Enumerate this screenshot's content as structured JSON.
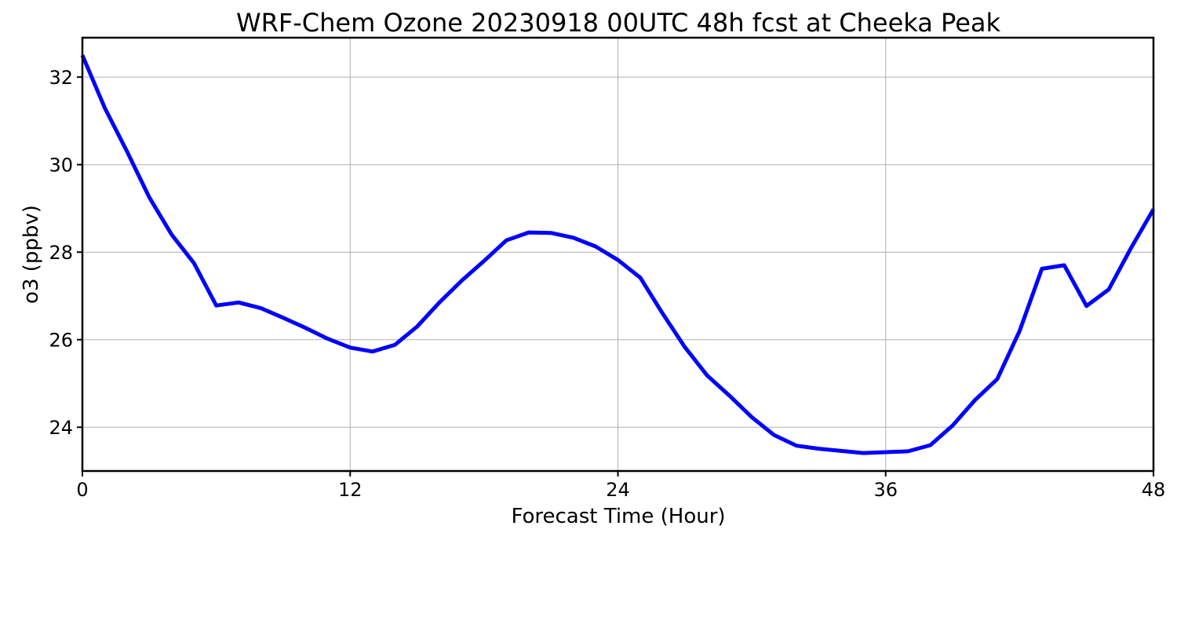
{
  "chart_data": {
    "type": "line",
    "title": "WRF-Chem Ozone  20230918 00UTC 48h fcst at Cheeka Peak",
    "xlabel": "Forecast Time (Hour)",
    "ylabel": "o3  (ppbv)",
    "xlim": [
      0,
      48
    ],
    "ylim": [
      23,
      32.9
    ],
    "xticks": [
      0,
      12,
      24,
      36,
      48
    ],
    "yticks": [
      24,
      26,
      28,
      30,
      32
    ],
    "grid": true,
    "line_color": "#0000ff",
    "series": [
      {
        "x": [
          0,
          1,
          2,
          3,
          4,
          5,
          6,
          7,
          8,
          9,
          10,
          11,
          12,
          13,
          14,
          15,
          16,
          17,
          18,
          19,
          20,
          21,
          22,
          23,
          24,
          25,
          26,
          27,
          28,
          29,
          30,
          31,
          32,
          33,
          34,
          35,
          36,
          37,
          38,
          39,
          40,
          41,
          42,
          43,
          44,
          45,
          46,
          47,
          48
        ],
        "values": [
          32.5,
          31.3,
          30.3,
          29.25,
          28.4,
          27.75,
          26.78,
          26.85,
          26.72,
          26.5,
          26.27,
          26.02,
          25.82,
          25.73,
          25.88,
          26.3,
          26.85,
          27.35,
          27.8,
          28.27,
          28.45,
          28.44,
          28.33,
          28.13,
          27.82,
          27.42,
          26.6,
          25.83,
          25.18,
          24.72,
          24.23,
          23.82,
          23.58,
          23.51,
          23.46,
          23.41,
          23.43,
          23.45,
          23.59,
          24.04,
          24.62,
          25.1,
          26.2,
          27.62,
          27.7,
          26.77,
          27.15,
          28.1,
          28.98
        ]
      }
    ]
  }
}
